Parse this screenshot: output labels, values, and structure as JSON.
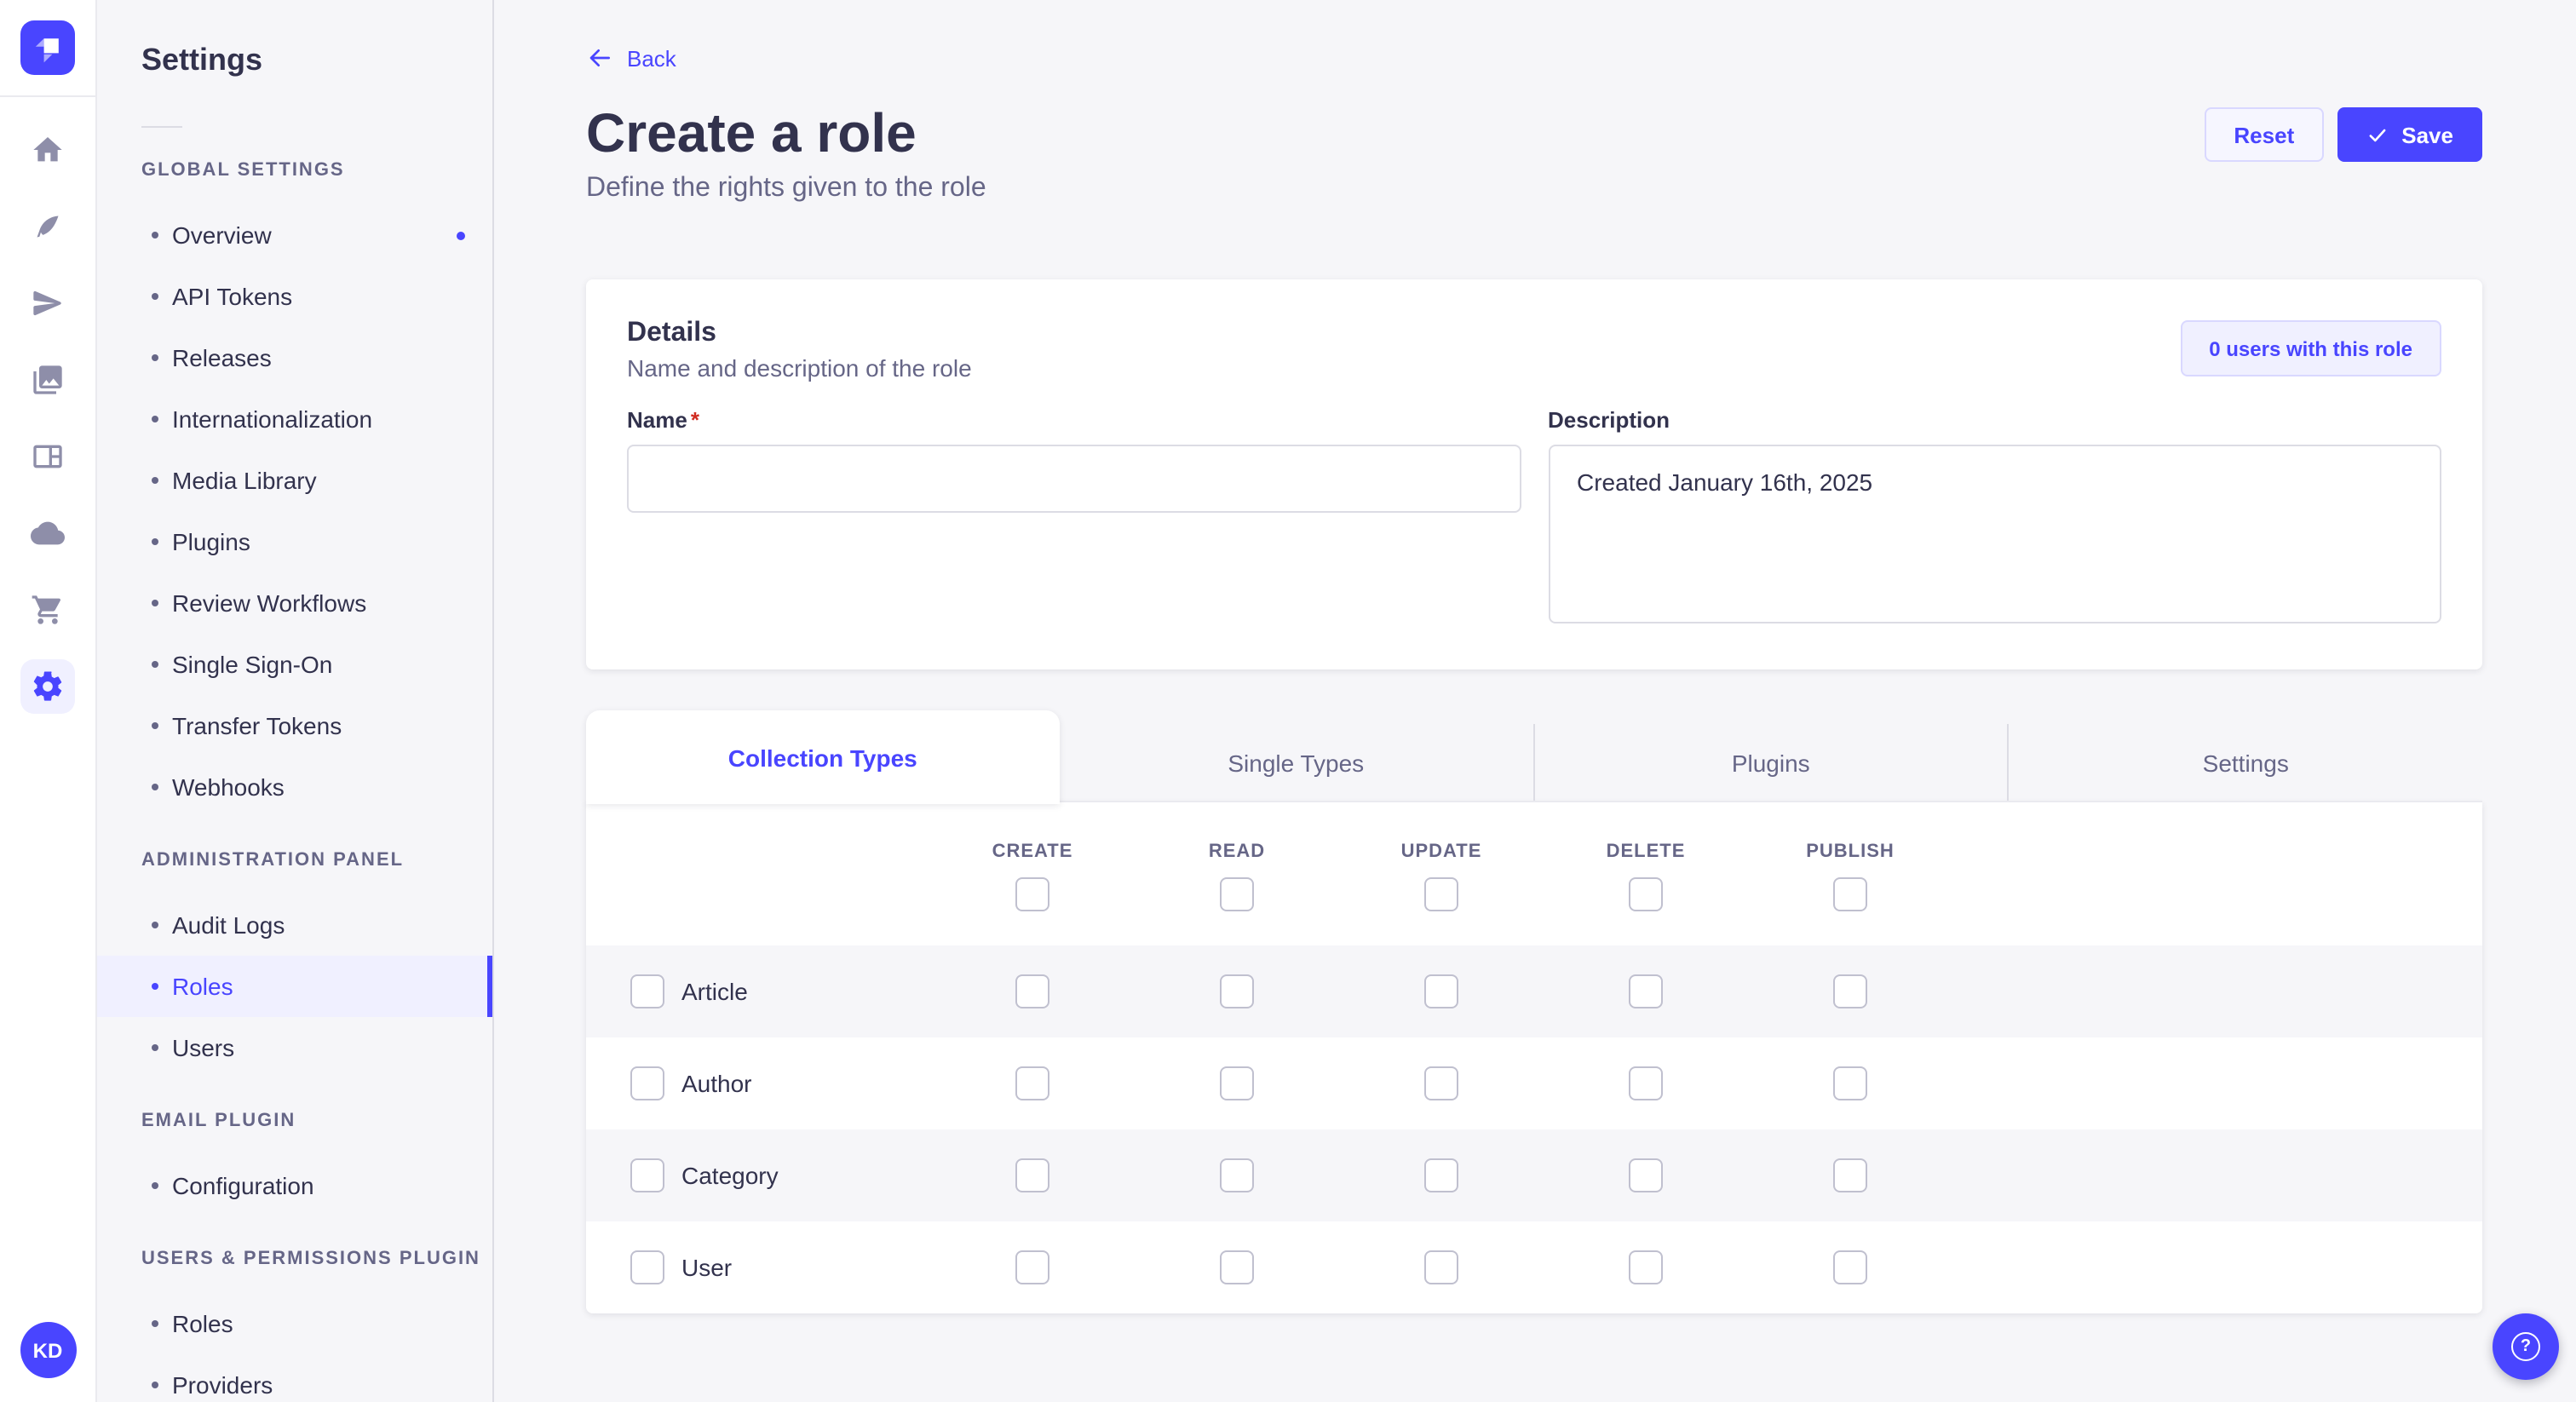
{
  "app": {
    "name": "Strapi admin"
  },
  "colors": {
    "primary": "#4945ff",
    "primary_bg": "#f0f0ff",
    "primary_border": "#d9d8ff",
    "page_bg": "#f6f6f9",
    "text": "#32324d",
    "text_muted": "#666687",
    "border": "#dcdce4",
    "required_red": "#d02b20"
  },
  "rail": {
    "icons": [
      "home",
      "content-manager",
      "releases",
      "media-library",
      "content-type-builder",
      "cloud",
      "marketplace",
      "settings"
    ],
    "active_icon": "settings",
    "avatar_initials": "KD"
  },
  "sidebar": {
    "title": "Settings",
    "sections": [
      {
        "heading": "GLOBAL SETTINGS",
        "items": [
          {
            "label": "Overview",
            "dot": true
          },
          {
            "label": "API Tokens"
          },
          {
            "label": "Releases"
          },
          {
            "label": "Internationalization"
          },
          {
            "label": "Media Library"
          },
          {
            "label": "Plugins"
          },
          {
            "label": "Review Workflows"
          },
          {
            "label": "Single Sign-On"
          },
          {
            "label": "Transfer Tokens"
          },
          {
            "label": "Webhooks"
          }
        ]
      },
      {
        "heading": "ADMINISTRATION PANEL",
        "items": [
          {
            "label": "Audit Logs"
          },
          {
            "label": "Roles",
            "active": true
          },
          {
            "label": "Users"
          }
        ]
      },
      {
        "heading": "EMAIL PLUGIN",
        "items": [
          {
            "label": "Configuration"
          }
        ]
      },
      {
        "heading": "USERS & PERMISSIONS PLUGIN",
        "items": [
          {
            "label": "Roles"
          },
          {
            "label": "Providers"
          }
        ]
      }
    ]
  },
  "header": {
    "back_label": "Back",
    "title": "Create a role",
    "subtitle": "Define the rights given to the role",
    "reset_label": "Reset",
    "save_label": "Save"
  },
  "details": {
    "title": "Details",
    "subtitle": "Name and description of the role",
    "users_count_button": "0 users with this role",
    "name_label": "Name",
    "required_mark": "*",
    "name_value": "",
    "description_label": "Description",
    "description_value": "Created January 16th, 2025"
  },
  "tabs": [
    {
      "label": "Collection Types",
      "active": true
    },
    {
      "label": "Single Types",
      "active": false
    },
    {
      "label": "Plugins",
      "active": false
    },
    {
      "label": "Settings",
      "active": false
    }
  ],
  "permissions": {
    "columns": [
      "CREATE",
      "READ",
      "UPDATE",
      "DELETE",
      "PUBLISH"
    ],
    "rows": [
      {
        "label": "Article",
        "values": [
          false,
          false,
          false,
          false,
          false
        ]
      },
      {
        "label": "Author",
        "values": [
          false,
          false,
          false,
          false,
          false
        ]
      },
      {
        "label": "Category",
        "values": [
          false,
          false,
          false,
          false,
          false
        ]
      },
      {
        "label": "User",
        "values": [
          false,
          false,
          false,
          false,
          false
        ]
      }
    ]
  },
  "help": {
    "label": "?"
  }
}
